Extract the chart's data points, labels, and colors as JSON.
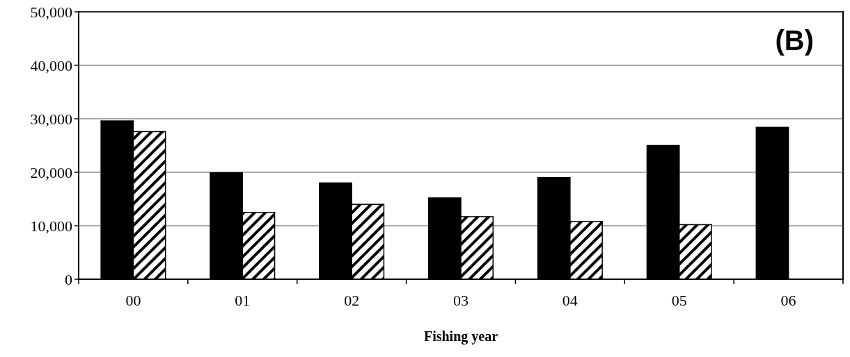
{
  "chart_data": {
    "type": "bar",
    "xlabel": "Fishing year",
    "annotations": [
      "(B)"
    ],
    "categories": [
      "00",
      "01",
      "02",
      "03",
      "04",
      "05",
      "06"
    ],
    "series": [
      {
        "color": "#000000",
        "values": [
          29600,
          19900,
          18000,
          15200,
          19000,
          25000,
          28400
        ]
      },
      {
        "color": "#000000",
        "values": [
          27600,
          12500,
          14000,
          11700,
          10800,
          10200,
          null
        ]
      }
    ],
    "ylim": [
      0,
      50000
    ],
    "yticks": [
      {
        "value": 0,
        "label": "0"
      },
      {
        "value": 10000,
        "label": "10,000"
      },
      {
        "value": 20000,
        "label": "20,000"
      },
      {
        "value": 30000,
        "label": "30,000"
      },
      {
        "value": 40000,
        "label": "40,000"
      },
      {
        "value": 50000,
        "label": "50,000"
      }
    ],
    "grid": "y"
  }
}
